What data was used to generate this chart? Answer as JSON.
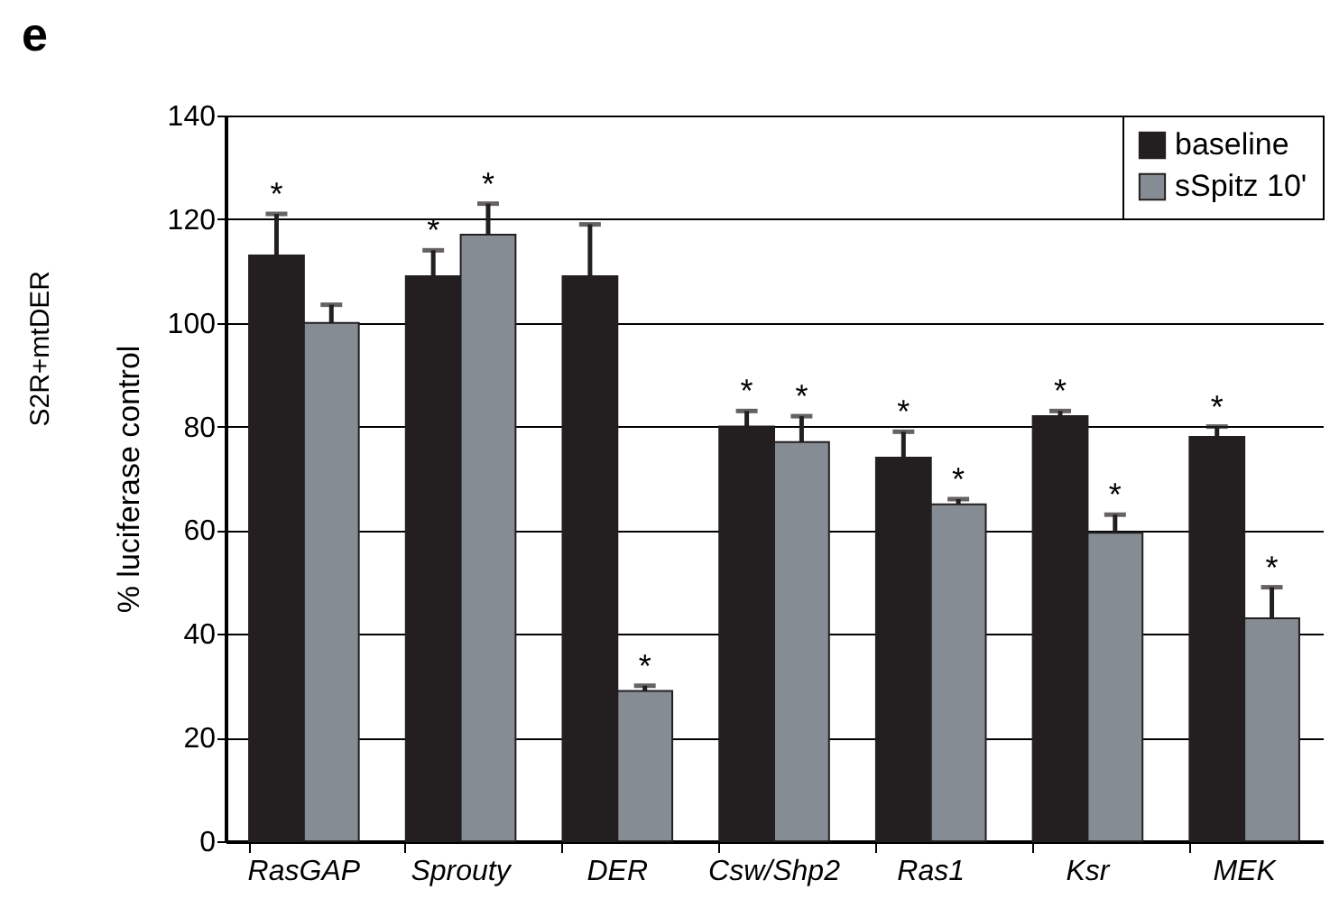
{
  "chart_data": {
    "type": "bar",
    "ylabel": "% luciferase control",
    "annotations": [
      "e",
      "S2R+mtDER"
    ],
    "categories": [
      "RasGAP",
      "Sprouty",
      "DER",
      "Csw/Shp2",
      "Ras1",
      "Ksr",
      "MEK"
    ],
    "series": [
      {
        "name": "baseline",
        "color": "#231f20",
        "values": [
          113,
          109,
          109,
          80,
          74,
          82,
          78
        ],
        "errors": [
          8,
          5,
          10,
          3,
          5,
          1,
          2
        ],
        "value_labels": [
          "*",
          "*",
          null,
          "*",
          "*",
          "*",
          "*"
        ]
      },
      {
        "name": "sSpitz 10'",
        "color": "#868c93",
        "values": [
          100,
          117,
          29,
          77,
          65,
          59.5,
          43
        ],
        "errors": [
          3.5,
          6,
          1,
          5,
          1,
          3.5,
          6
        ],
        "value_labels": [
          null,
          "*",
          "*",
          "*",
          "*",
          "*",
          "*"
        ]
      }
    ],
    "ylim": [
      0,
      140
    ],
    "yticks": [
      0,
      20,
      40,
      60,
      80,
      100,
      120,
      140
    ],
    "grid": "y",
    "legend": "top right"
  }
}
